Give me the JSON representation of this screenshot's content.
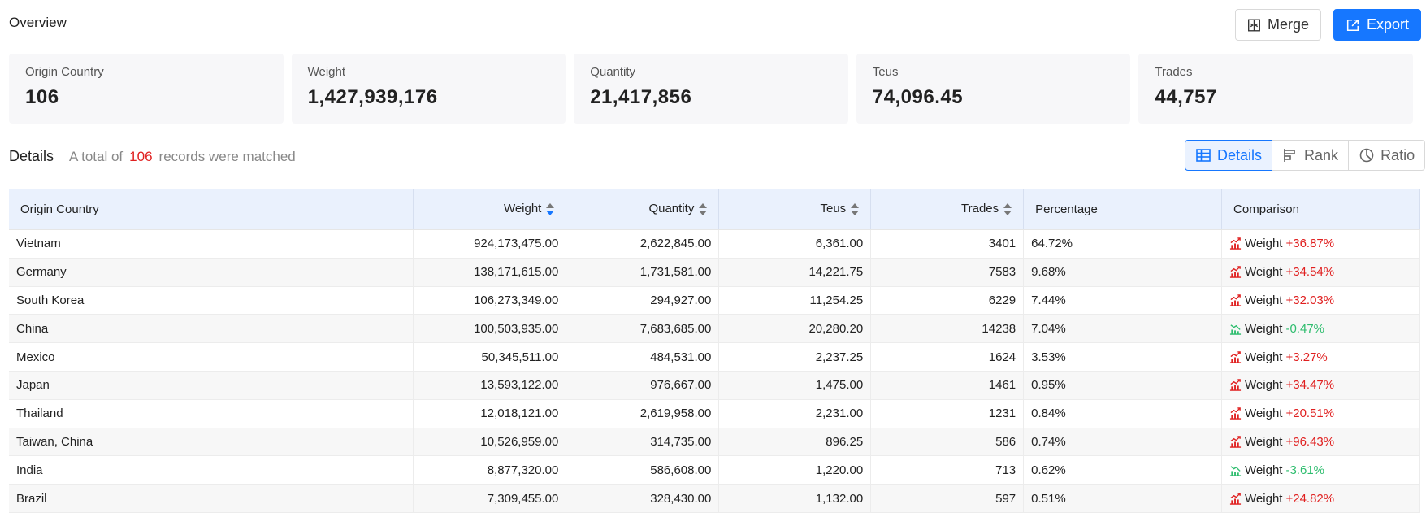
{
  "overview": {
    "title": "Overview"
  },
  "toolbar": {
    "merge_label": "Merge",
    "export_label": "Export"
  },
  "summary": [
    {
      "label": "Origin Country",
      "value": "106"
    },
    {
      "label": "Weight",
      "value": "1,427,939,176"
    },
    {
      "label": "Quantity",
      "value": "21,417,856"
    },
    {
      "label": "Teus",
      "value": "74,096.45"
    },
    {
      "label": "Trades",
      "value": "44,757"
    }
  ],
  "details": {
    "title": "Details",
    "prefix": "A total of",
    "count": "106",
    "suffix": "records were matched",
    "views": [
      "Details",
      "Rank",
      "Ratio"
    ]
  },
  "table": {
    "columns": [
      "Origin Country",
      "Weight",
      "Quantity",
      "Teus",
      "Trades",
      "Percentage",
      "Comparison"
    ],
    "metric": "Weight",
    "rows": [
      {
        "country": "Vietnam",
        "weight": "924,173,475.00",
        "quantity": "2,622,845.00",
        "teus": "6,361.00",
        "trades": "3401",
        "percentage": "64.72%",
        "change": "+36.87%",
        "trend": "up"
      },
      {
        "country": "Germany",
        "weight": "138,171,615.00",
        "quantity": "1,731,581.00",
        "teus": "14,221.75",
        "trades": "7583",
        "percentage": "9.68%",
        "change": "+34.54%",
        "trend": "up"
      },
      {
        "country": "South Korea",
        "weight": "106,273,349.00",
        "quantity": "294,927.00",
        "teus": "11,254.25",
        "trades": "6229",
        "percentage": "7.44%",
        "change": "+32.03%",
        "trend": "up"
      },
      {
        "country": "China",
        "weight": "100,503,935.00",
        "quantity": "7,683,685.00",
        "teus": "20,280.20",
        "trades": "14238",
        "percentage": "7.04%",
        "change": "-0.47%",
        "trend": "down"
      },
      {
        "country": "Mexico",
        "weight": "50,345,511.00",
        "quantity": "484,531.00",
        "teus": "2,237.25",
        "trades": "1624",
        "percentage": "3.53%",
        "change": "+3.27%",
        "trend": "up"
      },
      {
        "country": "Japan",
        "weight": "13,593,122.00",
        "quantity": "976,667.00",
        "teus": "1,475.00",
        "trades": "1461",
        "percentage": "0.95%",
        "change": "+34.47%",
        "trend": "up"
      },
      {
        "country": "Thailand",
        "weight": "12,018,121.00",
        "quantity": "2,619,958.00",
        "teus": "2,231.00",
        "trades": "1231",
        "percentage": "0.84%",
        "change": "+20.51%",
        "trend": "up"
      },
      {
        "country": "Taiwan, China",
        "weight": "10,526,959.00",
        "quantity": "314,735.00",
        "teus": "896.25",
        "trades": "586",
        "percentage": "0.74%",
        "change": "+96.43%",
        "trend": "up"
      },
      {
        "country": "India",
        "weight": "8,877,320.00",
        "quantity": "586,608.00",
        "teus": "1,220.00",
        "trades": "713",
        "percentage": "0.62%",
        "change": "-3.61%",
        "trend": "down"
      },
      {
        "country": "Brazil",
        "weight": "7,309,455.00",
        "quantity": "328,430.00",
        "teus": "1,132.00",
        "trades": "597",
        "percentage": "0.51%",
        "change": "+24.82%",
        "trend": "up"
      }
    ]
  },
  "colors": {
    "accent": "#1677ff",
    "positive": "#e02020",
    "negative": "#2ebd6e",
    "header_bg": "#eaf1fd"
  }
}
